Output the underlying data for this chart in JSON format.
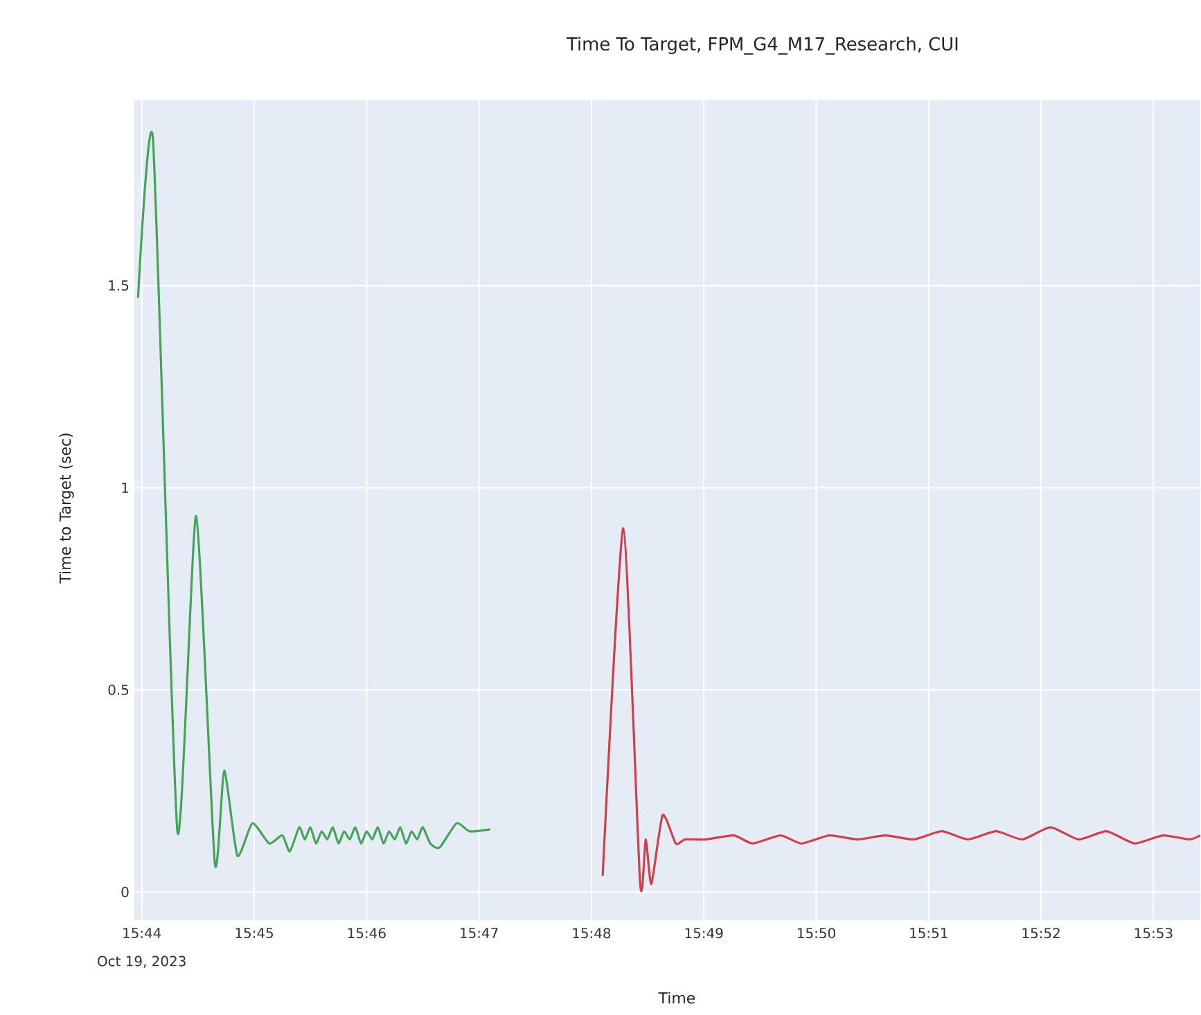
{
  "chart_data": {
    "type": "line",
    "title": "Time To Target, FPM_G4_M17_Research, CUI",
    "xlabel": "Time",
    "ylabel": "Time to Target (sec)",
    "annotations": [
      "Oct 19, 2023"
    ],
    "xlim": [
      "2023-10-19T15:43:56",
      "2023-10-19T15:53:25"
    ],
    "xticks": [
      {
        "value": "2023-10-19T15:44",
        "label": "15:44"
      },
      {
        "value": "2023-10-19T15:45",
        "label": "15:45"
      },
      {
        "value": "2023-10-19T15:46",
        "label": "15:46"
      },
      {
        "value": "2023-10-19T15:47",
        "label": "15:47"
      },
      {
        "value": "2023-10-19T15:48",
        "label": "15:48"
      },
      {
        "value": "2023-10-19T15:49",
        "label": "15:49"
      },
      {
        "value": "2023-10-19T15:50",
        "label": "15:50"
      },
      {
        "value": "2023-10-19T15:51",
        "label": "15:51"
      },
      {
        "value": "2023-10-19T15:52",
        "label": "15:52"
      },
      {
        "value": "2023-10-19T15:53",
        "label": "15:53"
      }
    ],
    "ylim": [
      -0.07,
      1.96
    ],
    "yticks": [
      0,
      0.5,
      1,
      1.5
    ],
    "grid": true,
    "series": [
      {
        "color": "#48a35a",
        "x": [
          "2023-10-19T15:43:58",
          "2023-10-19T15:44:06",
          "2023-10-19T15:44:19",
          "2023-10-19T15:44:29",
          "2023-10-19T15:44:39",
          "2023-10-19T15:44:44",
          "2023-10-19T15:44:51",
          "2023-10-19T15:44:59",
          "2023-10-19T15:45:08",
          "2023-10-19T15:45:15",
          "2023-10-19T15:45:19",
          "2023-10-19T15:45:24",
          "2023-10-19T15:45:27",
          "2023-10-19T15:45:30",
          "2023-10-19T15:45:33",
          "2023-10-19T15:45:36",
          "2023-10-19T15:45:39",
          "2023-10-19T15:45:42",
          "2023-10-19T15:45:45",
          "2023-10-19T15:45:48",
          "2023-10-19T15:45:51",
          "2023-10-19T15:45:54",
          "2023-10-19T15:45:57",
          "2023-10-19T15:46:00",
          "2023-10-19T15:46:03",
          "2023-10-19T15:46:06",
          "2023-10-19T15:46:09",
          "2023-10-19T15:46:12",
          "2023-10-19T15:46:15",
          "2023-10-19T15:46:18",
          "2023-10-19T15:46:21",
          "2023-10-19T15:46:24",
          "2023-10-19T15:46:27",
          "2023-10-19T15:46:30",
          "2023-10-19T15:46:34",
          "2023-10-19T15:46:39",
          "2023-10-19T15:46:48",
          "2023-10-19T15:46:55",
          "2023-10-19T15:47:06"
        ],
        "values": [
          1.47,
          1.86,
          0.15,
          0.93,
          0.07,
          0.3,
          0.09,
          0.17,
          0.12,
          0.14,
          0.1,
          0.16,
          0.13,
          0.16,
          0.12,
          0.15,
          0.13,
          0.16,
          0.12,
          0.15,
          0.13,
          0.16,
          0.12,
          0.15,
          0.13,
          0.16,
          0.12,
          0.15,
          0.13,
          0.16,
          0.12,
          0.15,
          0.13,
          0.16,
          0.12,
          0.11,
          0.17,
          0.15,
          0.155
        ]
      },
      {
        "color": "#d0404c",
        "x": [
          "2023-10-19T15:48:06",
          "2023-10-19T15:48:17",
          "2023-10-19T15:48:26",
          "2023-10-19T15:48:29",
          "2023-10-19T15:48:32",
          "2023-10-19T15:48:38",
          "2023-10-19T15:48:45",
          "2023-10-19T15:48:50",
          "2023-10-19T15:49:01",
          "2023-10-19T15:49:16",
          "2023-10-19T15:49:26",
          "2023-10-19T15:49:41",
          "2023-10-19T15:49:52",
          "2023-10-19T15:50:07",
          "2023-10-19T15:50:22",
          "2023-10-19T15:50:37",
          "2023-10-19T15:50:52",
          "2023-10-19T15:51:07",
          "2023-10-19T15:51:21",
          "2023-10-19T15:51:36",
          "2023-10-19T15:51:50",
          "2023-10-19T15:52:05",
          "2023-10-19T15:52:20",
          "2023-10-19T15:52:35",
          "2023-10-19T15:52:50",
          "2023-10-19T15:53:05",
          "2023-10-19T15:53:19",
          "2023-10-19T15:53:25"
        ],
        "values": [
          0.04,
          0.9,
          0.02,
          0.13,
          0.02,
          0.19,
          0.12,
          0.13,
          0.13,
          0.14,
          0.12,
          0.14,
          0.12,
          0.14,
          0.13,
          0.14,
          0.13,
          0.15,
          0.13,
          0.15,
          0.13,
          0.16,
          0.13,
          0.15,
          0.12,
          0.14,
          0.13,
          0.14
        ]
      }
    ]
  }
}
